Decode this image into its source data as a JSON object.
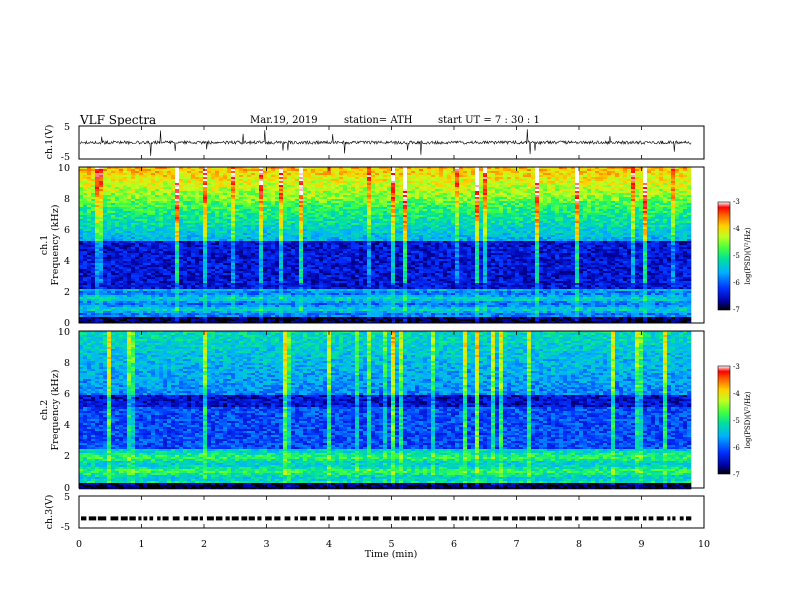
{
  "header": {
    "title": "VLF  Spectra",
    "date": "Mar.19, 2019",
    "station": "station= ATH",
    "start_ut": "start  UT  =   7  : 30 : 1"
  },
  "chart_data": [
    {
      "type": "line",
      "panel": "waveform",
      "ylabel": "ch.1(V)",
      "ylim": [
        -5,
        5
      ],
      "yticks": [
        "5",
        "-5"
      ],
      "xlim": [
        0,
        10
      ],
      "data_extent_min": [
        0,
        9.8
      ],
      "baseline": 0,
      "amplitude_approx": 1.0
    },
    {
      "type": "heatmap",
      "panel": "spectrogram",
      "ylabel_top": "ch.1",
      "ylabel": "Frequency  (kHz)",
      "ylim": [
        0,
        10
      ],
      "yticks": [
        "10",
        "8",
        "6",
        "4",
        "2",
        "0"
      ],
      "xlim": [
        0,
        10
      ],
      "data_extent_min": [
        0,
        9.8
      ],
      "value_label": "log(PSD)(V²/Hz)",
      "value_range": [
        -7,
        -3
      ],
      "value_ticks": [
        "-3",
        "-4",
        "-5",
        "-6",
        "-7"
      ]
    },
    {
      "type": "heatmap",
      "panel": "spectrogram",
      "ylabel_top": "ch.2",
      "ylabel": "Frequency  (kHz)",
      "ylim": [
        0,
        10
      ],
      "yticks": [
        "10",
        "8",
        "6",
        "4",
        "2",
        "0"
      ],
      "xlim": [
        0,
        10
      ],
      "data_extent_min": [
        0,
        9.8
      ],
      "value_label": "log(PSD)(V²/Hz)",
      "value_range": [
        -7,
        -3
      ],
      "value_ticks": [
        "-3",
        "-4",
        "-5",
        "-6",
        "-7"
      ]
    },
    {
      "type": "line",
      "panel": "pulses",
      "ylabel": "ch.3(V)",
      "ylim": [
        -5,
        5
      ],
      "yticks": [
        "5",
        "-5"
      ],
      "xlim": [
        0,
        10
      ],
      "data_extent_min": [
        0,
        9.8
      ],
      "level": -2
    }
  ],
  "x_axis": {
    "label": "Time  (min)",
    "ticks": [
      "0",
      "1",
      "2",
      "3",
      "4",
      "5",
      "6",
      "7",
      "8",
      "9",
      "10"
    ]
  },
  "colors": {
    "frame": "#000000",
    "colormap": [
      "#000000",
      "#0000a0",
      "#0030ff",
      "#00b0ff",
      "#00e0a0",
      "#40ff40",
      "#c0ff20",
      "#ffd000",
      "#ff6000",
      "#ff0000",
      "#ffffff"
    ]
  }
}
